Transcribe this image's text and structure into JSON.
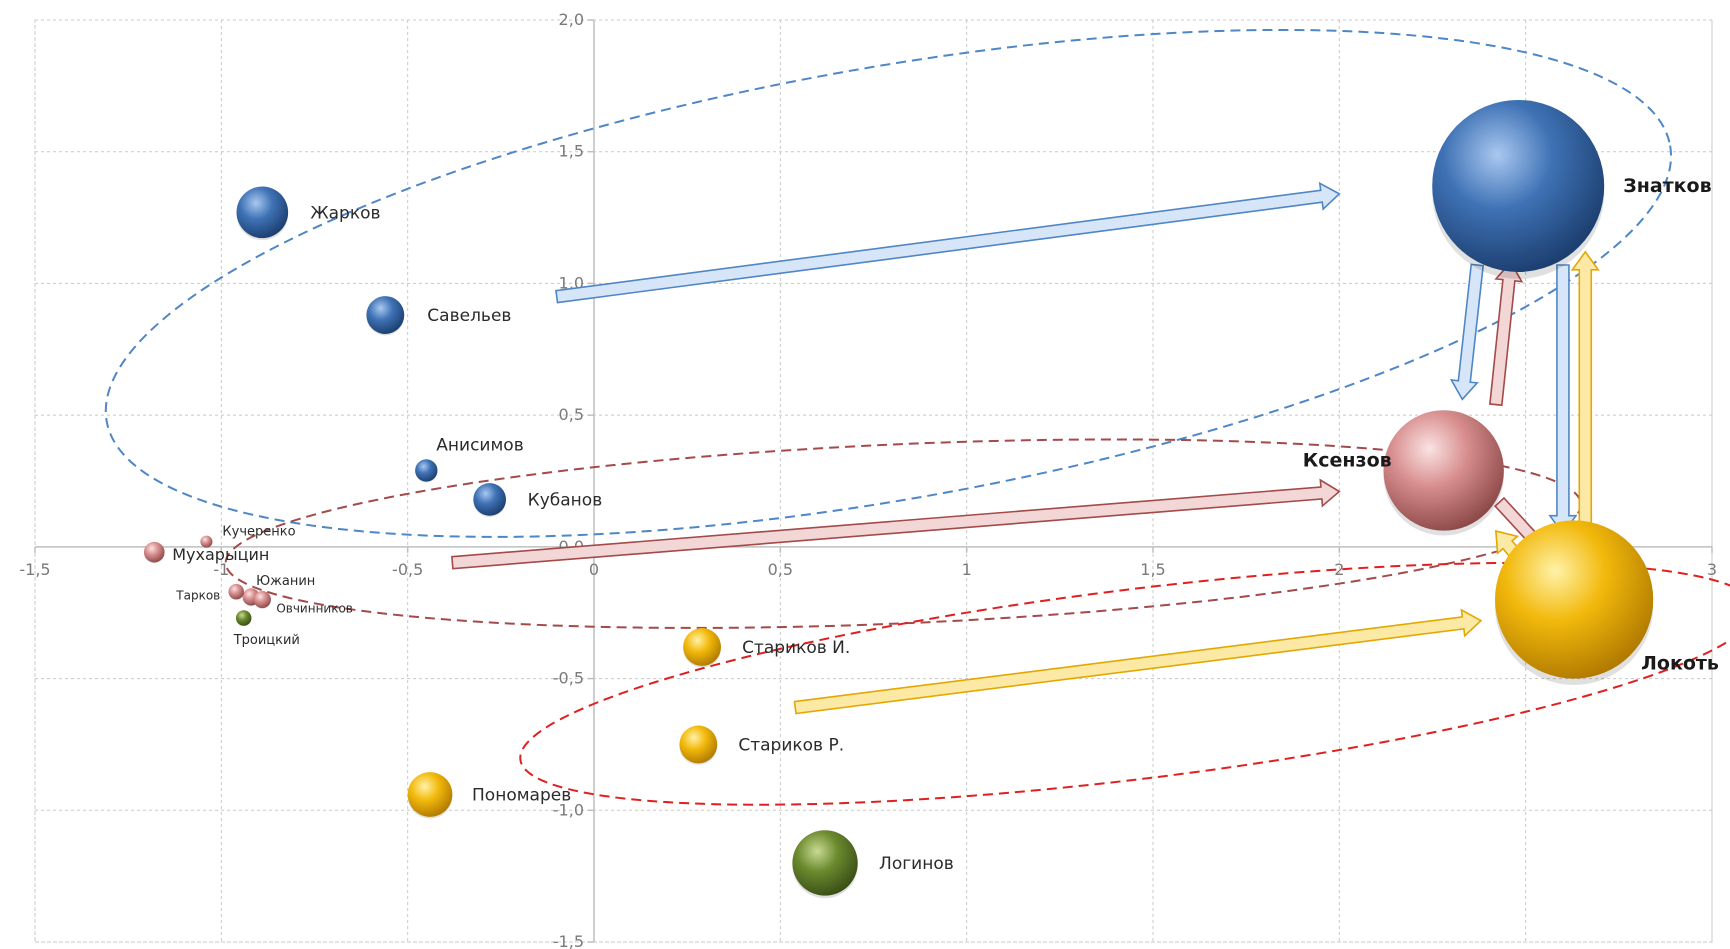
{
  "chart_data": {
    "type": "bubble",
    "title": "",
    "xlabel": "",
    "ylabel": "",
    "xlim": [
      -1.5,
      3
    ],
    "ylim": [
      -1.5,
      2.0
    ],
    "grid": true,
    "x_ticks": [
      "-1,5",
      "-1",
      "-0,5",
      "0",
      "0,5",
      "1",
      "1,5",
      "2",
      "2,5",
      "3"
    ],
    "y_ticks": [
      "2,0",
      "1,5",
      "1,0",
      "0,5",
      "0,0",
      "-0,5",
      "-1,0",
      "-1,5"
    ],
    "colors": {
      "blue": "#3f72b5",
      "pink": "#d88e8e",
      "yellow": "#f2b90c",
      "green": "#6b8a2e"
    },
    "points": [
      {
        "label": "Жарков",
        "x": -0.89,
        "y": 1.27,
        "size": 0.3,
        "group": "blue"
      },
      {
        "label": "Савельев",
        "x": -0.56,
        "y": 0.88,
        "size": 0.22,
        "group": "blue"
      },
      {
        "label": "Анисимов",
        "x": -0.45,
        "y": 0.29,
        "size": 0.13,
        "group": "blue"
      },
      {
        "label": "Кубанов",
        "x": -0.28,
        "y": 0.18,
        "size": 0.19,
        "group": "blue"
      },
      {
        "label": "Знатков",
        "x": 2.48,
        "y": 1.37,
        "size": 1.0,
        "group": "blue",
        "bold": true
      },
      {
        "label": "Кучеренко",
        "x": -1.04,
        "y": 0.02,
        "size": 0.07,
        "group": "pink"
      },
      {
        "label": "Мухарыцин",
        "x": -1.18,
        "y": -0.02,
        "size": 0.12,
        "group": "pink"
      },
      {
        "label": "Южанин",
        "x": -0.92,
        "y": -0.19,
        "size": 0.1,
        "group": "pink"
      },
      {
        "label": "Тарков",
        "x": -0.96,
        "y": -0.17,
        "size": 0.09,
        "group": "pink"
      },
      {
        "label": "Овчинников",
        "x": -0.89,
        "y": -0.2,
        "size": 0.1,
        "group": "pink"
      },
      {
        "label": "Ксензов",
        "x": 2.28,
        "y": 0.29,
        "size": 0.7,
        "group": "pink",
        "bold": true
      },
      {
        "label": "Троицкий",
        "x": -0.94,
        "y": -0.27,
        "size": 0.09,
        "group": "green"
      },
      {
        "label": "Логинов",
        "x": 0.62,
        "y": -1.2,
        "size": 0.38,
        "group": "green"
      },
      {
        "label": "Стариков И.",
        "x": 0.29,
        "y": -0.38,
        "size": 0.22,
        "group": "yellow"
      },
      {
        "label": "Стариков Р.",
        "x": 0.28,
        "y": -0.75,
        "size": 0.22,
        "group": "yellow"
      },
      {
        "label": "Пономарев",
        "x": -0.44,
        "y": -0.94,
        "size": 0.26,
        "group": "yellow"
      },
      {
        "label": "Локоть",
        "x": 2.63,
        "y": -0.2,
        "size": 0.92,
        "group": "yellow",
        "bold": true
      }
    ],
    "ellipses": [
      {
        "group": "blue",
        "cx": 0.79,
        "cy": 1.0,
        "rx": 2.13,
        "ry": 0.82,
        "rot": -10
      },
      {
        "group": "pink",
        "cx": 0.83,
        "cy": 0.05,
        "rx": 1.82,
        "ry": 0.34,
        "rot": -2.5
      },
      {
        "group": "red",
        "cx": 1.46,
        "cy": -0.52,
        "rx": 1.67,
        "ry": 0.36,
        "rot": -7
      }
    ],
    "arrows": [
      {
        "from": [
          -0.1,
          0.95
        ],
        "to": [
          2.0,
          1.34
        ],
        "color": "blue"
      },
      {
        "from": [
          -0.38,
          -0.06
        ],
        "to": [
          2.0,
          0.21
        ],
        "color": "pink"
      },
      {
        "from": [
          0.54,
          -0.61
        ],
        "to": [
          2.38,
          -0.28
        ],
        "color": "yellow"
      },
      {
        "from": [
          2.37,
          1.07
        ],
        "to": [
          2.33,
          0.56
        ],
        "color": "blue"
      },
      {
        "from": [
          2.42,
          0.54
        ],
        "to": [
          2.46,
          1.08
        ],
        "color": "pink"
      },
      {
        "from": [
          2.6,
          1.07
        ],
        "to": [
          2.6,
          0.05
        ],
        "color": "blue"
      },
      {
        "from": [
          2.66,
          0.07
        ],
        "to": [
          2.66,
          1.12
        ],
        "color": "yellow"
      },
      {
        "from": [
          2.43,
          0.17
        ],
        "to": [
          2.56,
          -0.03
        ],
        "color": "pink"
      },
      {
        "from": [
          2.51,
          -0.09
        ],
        "to": [
          2.42,
          0.06
        ],
        "color": "yellow"
      }
    ]
  }
}
